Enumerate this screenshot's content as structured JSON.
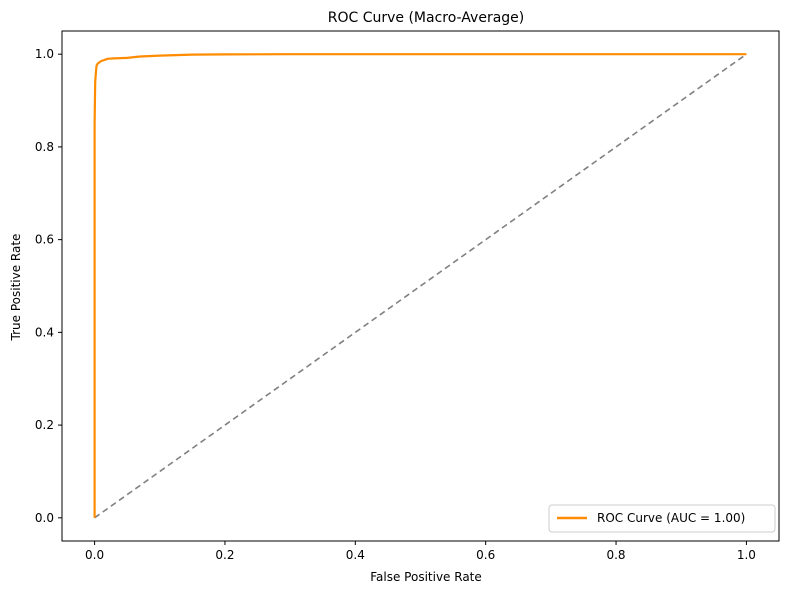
{
  "chart_data": {
    "type": "line",
    "title": "ROC Curve (Macro-Average)",
    "xlabel": "False Positive Rate",
    "ylabel": "True Positive Rate",
    "xlim": [
      -0.05,
      1.05
    ],
    "ylim": [
      -0.05,
      1.05
    ],
    "xticks": [
      "0.0",
      "0.2",
      "0.4",
      "0.6",
      "0.8",
      "1.0"
    ],
    "yticks": [
      "0.0",
      "0.2",
      "0.4",
      "0.6",
      "0.8",
      "1.0"
    ],
    "grid": false,
    "legend_position": "lower-right",
    "series": [
      {
        "name": "ROC Curve (AUC = 1.00)",
        "color": "#ff8c00",
        "style": "solid",
        "x": [
          0.0,
          0.0,
          0.001,
          0.002,
          0.003,
          0.005,
          0.01,
          0.02,
          0.03,
          0.05,
          0.07,
          0.1,
          0.15,
          0.2,
          0.3,
          0.5,
          0.7,
          1.0
        ],
        "y": [
          0.0,
          0.85,
          0.94,
          0.96,
          0.975,
          0.98,
          0.985,
          0.99,
          0.991,
          0.992,
          0.995,
          0.997,
          0.999,
          0.9995,
          1.0,
          1.0,
          1.0,
          1.0
        ]
      },
      {
        "name": "",
        "color": "#808080",
        "style": "dashed",
        "x": [
          0.0,
          1.0
        ],
        "y": [
          0.0,
          1.0
        ]
      }
    ]
  }
}
